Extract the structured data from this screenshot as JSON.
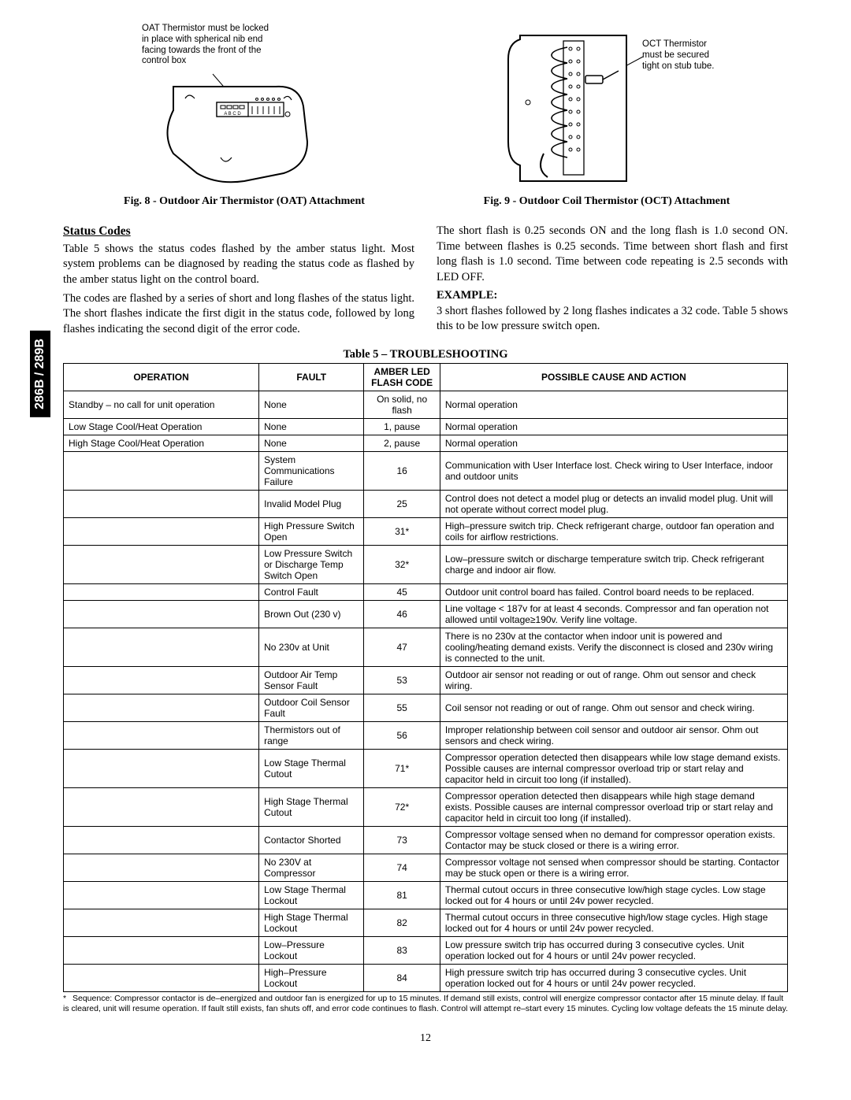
{
  "sideTab": "286B / 289B",
  "figures": {
    "fig8": {
      "note": "OAT Thermistor must be locked in place with spherical nib end facing towards the front of the control box",
      "caption": "Fig. 8 - Outdoor Air Thermistor (OAT) Attachment"
    },
    "fig9": {
      "note": "OCT Thermistor must be secured tight on stub tube.",
      "caption": "Fig. 9 - Outdoor Coil Thermistor (OCT) Attachment"
    }
  },
  "statusCodes": {
    "heading": "Status Codes",
    "leftCol": {
      "p1": "Table 5 shows the status codes flashed by the amber status light. Most system problems can be diagnosed by reading the status code as flashed by the amber status light on the control board.",
      "p2": "The codes are flashed by a series of short and long flashes of the status light. The short flashes indicate the first digit in the status code, followed by long flashes indicating the second digit of the error code."
    },
    "rightCol": {
      "p1": "The short flash is 0.25 seconds ON and the long flash is 1.0 second ON. Time between flashes is 0.25 seconds. Time between short flash and first long flash is 1.0 second.  Time between code repeating is 2.5 seconds with LED OFF.",
      "exampleHeading": "EXAMPLE:",
      "p2": "3 short flashes followed by 2 long flashes indicates a 32 code. Table 5 shows this to be low pressure switch open."
    }
  },
  "table": {
    "title": "Table 5 – TROUBLESHOOTING",
    "headers": {
      "operation": "OPERATION",
      "fault": "FAULT",
      "code": "AMBER LED FLASH CODE",
      "action": "POSSIBLE CAUSE AND ACTION"
    },
    "rows": [
      {
        "op": "Standby – no call for unit operation",
        "fault": "None",
        "code": "On solid, no flash",
        "action": "Normal operation"
      },
      {
        "op": "Low Stage Cool/Heat Operation",
        "fault": "None",
        "code": "1, pause",
        "action": "Normal operation"
      },
      {
        "op": "High Stage Cool/Heat Operation",
        "fault": "None",
        "code": "2, pause",
        "action": "Normal operation"
      },
      {
        "op": "",
        "fault": "System Communications Failure",
        "code": "16",
        "action": "Communication with User Interface lost. Check wiring to User Interface, indoor and outdoor units"
      },
      {
        "op": "",
        "fault": "Invalid Model Plug",
        "code": "25",
        "action": "Control does not detect a model plug or detects an invalid model plug.  Unit will not operate without correct model plug."
      },
      {
        "op": "",
        "fault": "High Pressure Switch Open",
        "code": "31*",
        "action": "High–pressure switch trip. Check refrigerant charge, outdoor fan operation and coils for airflow restrictions."
      },
      {
        "op": "",
        "fault": "Low Pressure Switch or Discharge Temp Switch Open",
        "code": "32*",
        "action": "Low–pressure switch or discharge temperature switch trip. Check refrigerant charge and  indoor air flow."
      },
      {
        "op": "",
        "fault": "Control Fault",
        "code": "45",
        "action": "Outdoor unit control board has failed.  Control board needs to be replaced."
      },
      {
        "op": "",
        "fault": "Brown Out (230 v)",
        "code": "46",
        "action": "Line voltage < 187v for at least 4 seconds. Compressor and fan operation not allowed until voltage≥190v.  Verify line voltage."
      },
      {
        "op": "",
        "fault": "No 230v at Unit",
        "code": "47",
        "action": "There is no 230v at the contactor when indoor unit is powered and cooling/heating demand exists.  Verify the disconnect is closed and 230v wiring is connected to the unit."
      },
      {
        "op": "",
        "fault": "Outdoor Air Temp Sensor Fault",
        "code": "53",
        "action": "Outdoor air sensor not reading or out of range. Ohm out sensor and check wiring."
      },
      {
        "op": "",
        "fault": "Outdoor Coil Sensor Fault",
        "code": "55",
        "action": "Coil sensor not reading or out of range. Ohm out sensor and check wiring."
      },
      {
        "op": "",
        "fault": "Thermistors out of range",
        "code": "56",
        "action": "Improper relationship between coil sensor and outdoor air sensor. Ohm out sensors and check wiring."
      },
      {
        "op": "",
        "fault": "Low Stage Thermal Cutout",
        "code": "71*",
        "action": "Compressor operation detected then disappears while low stage demand exists. Possible causes are internal compressor overload trip or start relay and capacitor held in circuit too long (if installed)."
      },
      {
        "op": "",
        "fault": "High Stage Thermal Cutout",
        "code": "72*",
        "action": "Compressor operation detected then disappears while high stage demand exists. Possible causes are internal compressor overload trip or start relay and capacitor held in circuit too long (if installed)."
      },
      {
        "op": "",
        "fault": "Contactor Shorted",
        "code": "73",
        "action": "Compressor voltage sensed when no demand for compressor operation exists. Contactor may be stuck closed or there is a wiring error."
      },
      {
        "op": "",
        "fault": "No 230V at Compressor",
        "code": "74",
        "action": "Compressor voltage not sensed when compressor should be starting. Contactor may be stuck open or there is a wiring error."
      },
      {
        "op": "",
        "fault": "Low Stage Thermal Lockout",
        "code": "81",
        "action": "Thermal cutout occurs in three consecutive low/high stage cycles.  Low stage locked out for 4 hours or until 24v power recycled."
      },
      {
        "op": "",
        "fault": "High Stage Thermal Lockout",
        "code": "82",
        "action": "Thermal cutout occurs in three consecutive high/low stage cycles.  High stage locked out for 4 hours or until 24v power recycled."
      },
      {
        "op": "",
        "fault": "Low–Pressure Lockout",
        "code": "83",
        "action": "Low pressure switch trip has occurred during 3 consecutive cycles.  Unit operation locked out for 4 hours or until 24v power recycled."
      },
      {
        "op": "",
        "fault": "High–Pressure Lockout",
        "code": "84",
        "action": "High pressure switch trip has occurred during 3 consecutive cycles.  Unit operation locked out for 4 hours or until 24v power recycled."
      }
    ],
    "footnote": "Sequence: Compressor contactor is de–energized and outdoor fan is energized for up to 15 minutes. If demand still exists, control will energize compressor contactor after 15 minute delay. If fault is cleared, unit will resume operation. If fault still exists, fan shuts off, and error code continues to flash. Control will attempt re–start every 15 minutes. Cycling low voltage defeats the 15 minute delay."
  },
  "pageNumber": "12",
  "columnWidths": {
    "op": "27%",
    "fault": "14.5%",
    "code": "10.5%",
    "action": "48%"
  }
}
